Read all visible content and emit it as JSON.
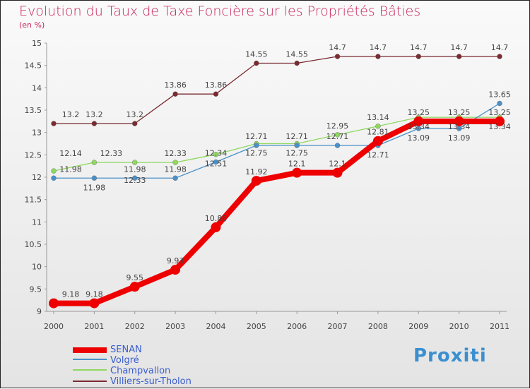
{
  "chart_data": {
    "type": "line",
    "title": "Evolution du Taux de Taxe Foncière sur les Propriétés Bâties",
    "ylabel": "(en %)",
    "x": [
      "2000",
      "2001",
      "2002",
      "2003",
      "2004",
      "2005",
      "2006",
      "2007",
      "2008",
      "2009",
      "2010",
      "2011"
    ],
    "yticks": [
      "9",
      "9.5",
      "10",
      "10.5",
      "11",
      "11.5",
      "12",
      "12.5",
      "13",
      "13.5",
      "14",
      "14.5",
      "15"
    ],
    "ylim": [
      9,
      15
    ],
    "series": [
      {
        "name": "SENAN",
        "color": "#ee0000",
        "values": [
          9.18,
          9.18,
          9.55,
          9.93,
          10.88,
          11.92,
          12.1,
          12.1,
          12.81,
          13.25,
          13.25,
          13.25
        ]
      },
      {
        "name": "Volgré",
        "color": "#4a90c8",
        "values": [
          11.98,
          11.98,
          11.98,
          11.98,
          12.34,
          12.71,
          12.71,
          12.71,
          12.71,
          13.09,
          13.09,
          13.65
        ]
      },
      {
        "name": "Champvallon",
        "color": "#8fd860",
        "values": [
          12.14,
          12.33,
          12.33,
          12.33,
          12.51,
          12.75,
          12.75,
          12.95,
          13.14,
          13.34,
          13.34,
          13.34
        ]
      },
      {
        "name": "Villiers-sur-Tholon",
        "color": "#7a2a30",
        "values": [
          13.2,
          13.2,
          13.2,
          13.86,
          13.86,
          14.55,
          14.55,
          14.7,
          14.7,
          14.7,
          14.7,
          14.7
        ]
      }
    ]
  },
  "logo": "Proxiti"
}
